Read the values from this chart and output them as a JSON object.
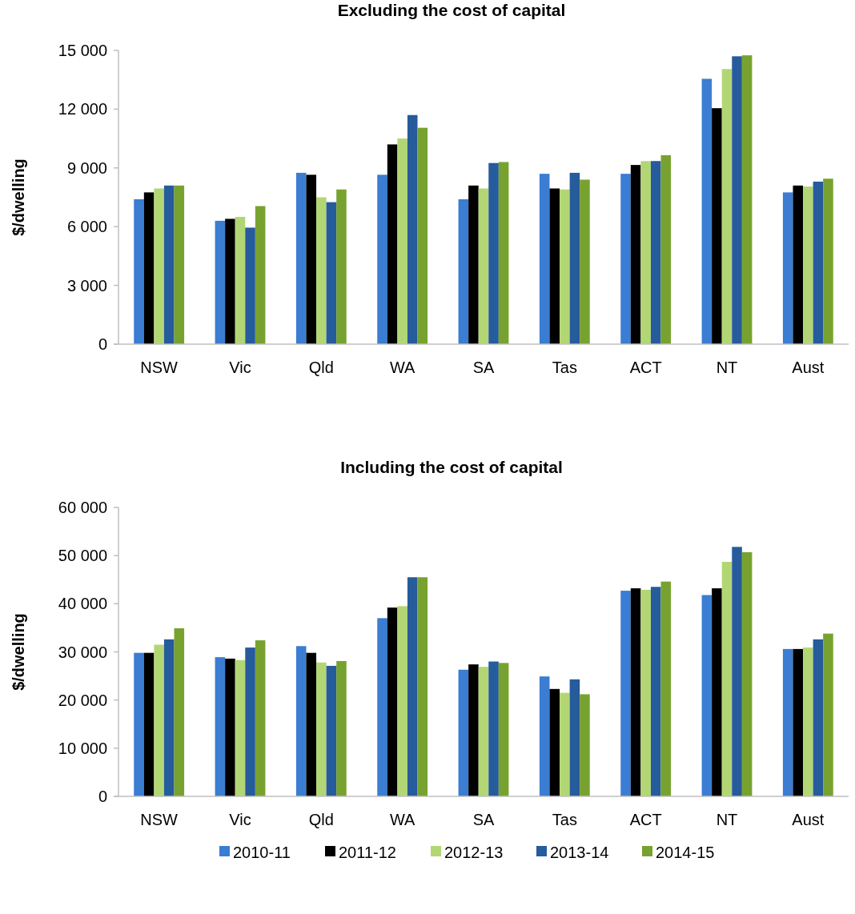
{
  "chart_data": [
    {
      "type": "bar",
      "title": "Excluding the cost of capital",
      "ylabel": "$/dwelling",
      "categories": [
        "NSW",
        "Vic",
        "Qld",
        "WA",
        "SA",
        "Tas",
        "ACT",
        "NT",
        "Aust"
      ],
      "series": [
        {
          "color": "#3a7dd2",
          "values": [
            7400,
            6300,
            8750,
            8650,
            7400,
            8700,
            8700,
            13550,
            7750
          ]
        },
        {
          "color": "#000000",
          "values": [
            7750,
            6400,
            8650,
            10200,
            8100,
            7950,
            9150,
            12050,
            8100
          ]
        },
        {
          "color": "#b3d675",
          "values": [
            7950,
            6500,
            7500,
            10500,
            7950,
            7900,
            9350,
            14050,
            8050
          ]
        },
        {
          "color": "#265b9c",
          "values": [
            8100,
            5950,
            7250,
            11700,
            9250,
            8750,
            9350,
            14700,
            8300
          ]
        },
        {
          "color": "#78a22f",
          "values": [
            8100,
            7050,
            7900,
            11050,
            9300,
            8400,
            9650,
            14750,
            8450
          ]
        }
      ],
      "ylim": [
        0,
        15000
      ],
      "yticks": [
        0,
        {
          "value": 3000,
          "label": "3 000"
        },
        {
          "value": 6000,
          "label": "6 000"
        },
        {
          "value": 9000,
          "label": "9 000"
        },
        {
          "value": 12000,
          "label": "12 000"
        },
        {
          "value": 15000,
          "label": "15 000"
        }
      ],
      "grid": false,
      "legend": false
    },
    {
      "type": "bar",
      "title": "Including the cost of capital",
      "ylabel": "$/dwelling",
      "categories": [
        "NSW",
        "Vic",
        "Qld",
        "WA",
        "SA",
        "Tas",
        "ACT",
        "NT",
        "Aust"
      ],
      "series": [
        {
          "name": "2010-11",
          "color": "#3a7dd2",
          "values": [
            29800,
            28900,
            31200,
            37000,
            26300,
            24900,
            42700,
            41800,
            30600
          ]
        },
        {
          "name": "2011-12",
          "color": "#000000",
          "values": [
            29800,
            28600,
            29800,
            39200,
            27400,
            22300,
            43200,
            43200,
            30600
          ]
        },
        {
          "name": "2012-13",
          "color": "#b3d675",
          "values": [
            31500,
            28300,
            27800,
            39500,
            26900,
            21500,
            42900,
            48700,
            30900
          ]
        },
        {
          "name": "2013-14",
          "color": "#265b9c",
          "values": [
            32600,
            30900,
            27100,
            45500,
            28000,
            24300,
            43500,
            51800,
            32600
          ]
        },
        {
          "name": "2014-15",
          "color": "#78a22f",
          "values": [
            34900,
            32400,
            28100,
            45500,
            27700,
            21200,
            44600,
            50700,
            33800
          ]
        }
      ],
      "ylim": [
        0,
        60000
      ],
      "yticks": [
        0,
        {
          "value": 10000,
          "label": "10 000"
        },
        {
          "value": 20000,
          "label": "20 000"
        },
        {
          "value": 30000,
          "label": "30 000"
        },
        {
          "value": 40000,
          "label": "40 000"
        },
        {
          "value": 50000,
          "label": "50 000"
        },
        {
          "value": 60000,
          "label": "60 000"
        }
      ],
      "grid": false,
      "legend": "bottom"
    }
  ]
}
